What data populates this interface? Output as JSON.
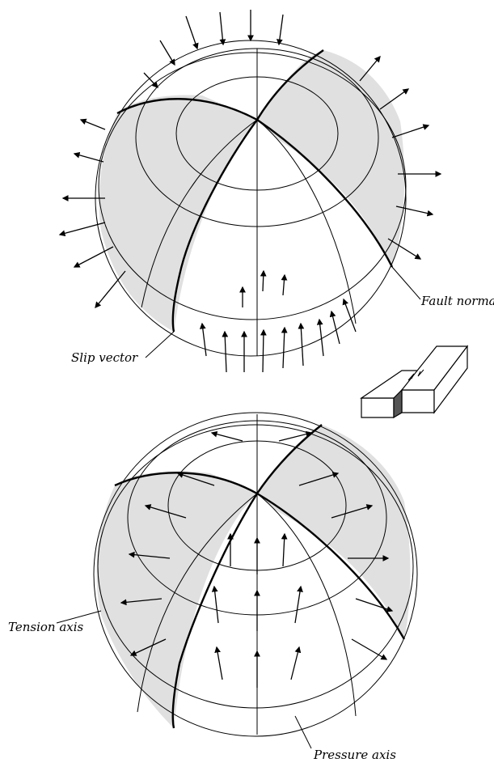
{
  "labels": {
    "fault_normal": "Fault normal",
    "slip_vector": "Slip vector",
    "tension_axis": "Tension axis",
    "pressure_axis": "Pressure axis"
  },
  "colors": {
    "shaded_quadrant": "#e0e0e0",
    "line": "#000000",
    "background": "#ffffff"
  },
  "icons": [
    "fault-block-icon"
  ]
}
